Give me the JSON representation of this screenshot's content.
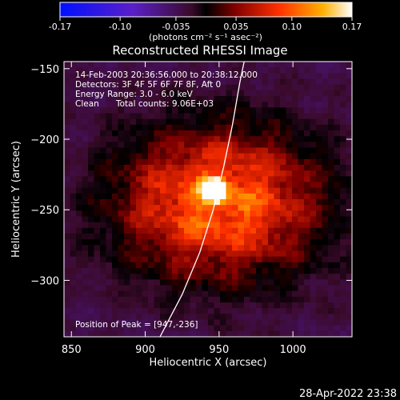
{
  "chart_data": {
    "type": "heatmap",
    "title": "Reconstructed RHESSI Image",
    "xlabel": "Heliocentric X (arcsec)",
    "ylabel": "Heliocentric Y (arcsec)",
    "xlim": [
      845,
      1040
    ],
    "ylim": [
      -340,
      -145
    ],
    "x_ticks": [
      850,
      900,
      950,
      1000
    ],
    "y_ticks": [
      -150,
      -200,
      -250,
      -300
    ],
    "colorbar": {
      "range": [
        -0.17,
        0.17
      ],
      "ticks": [
        "-0.17",
        "-0.10",
        "-0.035",
        "0.035",
        "0.10",
        "0.17"
      ],
      "tick_values": [
        -0.17,
        -0.1,
        -0.035,
        0.035,
        0.1,
        0.17
      ],
      "unit_label": "(photons cm⁻² s⁻¹ asec⁻²)"
    },
    "annotations": {
      "time_range": "14-Feb-2003 20:36:56.000 to 20:38:12.000",
      "detectors": "Detectors: 3F 4F 5F 6F 7F 8F, Aft 0",
      "energy": "Energy Range: 3.0 - 6.0 keV",
      "clean": "Clean",
      "counts": "Total counts: 9.06E+03",
      "peak": "Position of Peak = [947,-236]"
    },
    "peak": {
      "x": 947,
      "y": -236,
      "value": 0.17
    },
    "limb_curve": [
      [
        910,
        -340
      ],
      [
        925,
        -310
      ],
      [
        937,
        -280
      ],
      [
        946,
        -250
      ],
      [
        953,
        -220
      ],
      [
        959,
        -190
      ],
      [
        964,
        -160
      ],
      [
        967,
        -145
      ]
    ]
  },
  "footer": {
    "timestamp": "28-Apr-2022 23:38"
  }
}
